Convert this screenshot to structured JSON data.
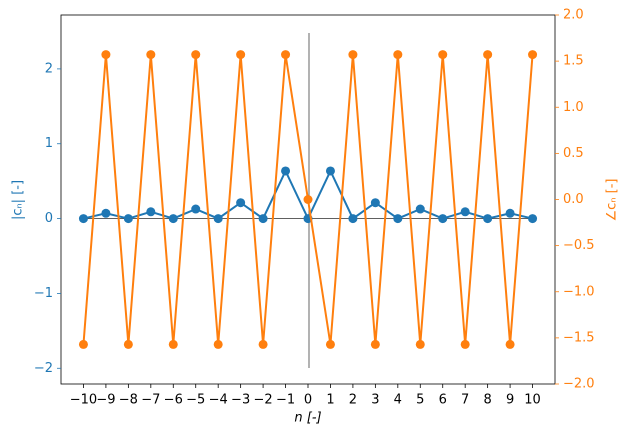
{
  "chart_data": {
    "type": "line",
    "xlabel": "n [-]",
    "ylabel": "|cₙ| [-]",
    "y2label": "∠cₙ [-]",
    "x": [
      -10,
      -9,
      -8,
      -7,
      -6,
      -5,
      -4,
      -3,
      -2,
      -1,
      0,
      1,
      2,
      3,
      4,
      5,
      6,
      7,
      8,
      9,
      10
    ],
    "series": [
      {
        "name": "|cₙ|",
        "color": "#1f77b4",
        "axis": "y",
        "values": [
          0,
          0.0707,
          0,
          0.0909,
          0,
          0.1273,
          0,
          0.2122,
          0,
          0.6366,
          0,
          0.6366,
          0,
          0.2122,
          0,
          0.1273,
          0,
          0.0909,
          0,
          0.0707,
          0
        ]
      },
      {
        "name": "∠cₙ",
        "color": "#ff7f0e",
        "axis": "y2",
        "values": [
          -1.5708,
          1.5708,
          -1.5708,
          1.5708,
          -1.5708,
          1.5708,
          -1.5708,
          1.5708,
          -1.5708,
          1.5708,
          0,
          -1.5708,
          1.5708,
          -1.5708,
          1.5708,
          -1.5708,
          1.5708,
          -1.5708,
          1.5708,
          -1.5708,
          1.5708
        ]
      }
    ],
    "xlim": [
      -11,
      11
    ],
    "xticks": [
      {
        "value": -10,
        "label": "−10"
      },
      {
        "value": -9,
        "label": "−9"
      },
      {
        "value": -8,
        "label": "−8"
      },
      {
        "value": -7,
        "label": "−7"
      },
      {
        "value": -6,
        "label": "−6"
      },
      {
        "value": -5,
        "label": "−5"
      },
      {
        "value": -4,
        "label": "−4"
      },
      {
        "value": -3,
        "label": "−3"
      },
      {
        "value": -2,
        "label": "−2"
      },
      {
        "value": -1,
        "label": "−1"
      },
      0,
      1,
      2,
      3,
      4,
      5,
      6,
      7,
      8,
      9,
      10
    ],
    "ylim": [
      -2.21,
      2.72
    ],
    "yticks": [
      {
        "value": -2,
        "label": "−2"
      },
      {
        "value": -1,
        "label": "−1"
      },
      0,
      1,
      2
    ],
    "y2lim": [
      -2,
      2
    ],
    "y2ticks": [
      {
        "value": -2,
        "label": "−2.0"
      },
      {
        "value": -1.5,
        "label": "−1.5"
      },
      {
        "value": -1,
        "label": "−1.0"
      },
      {
        "value": -0.5,
        "label": "−0.5"
      },
      {
        "value": 0,
        "label": "0.0"
      },
      {
        "value": 0.5,
        "label": "0.5"
      },
      {
        "value": 1,
        "label": "1.0"
      },
      {
        "value": 1.5,
        "label": "1.5"
      },
      {
        "value": 2,
        "label": "2.0"
      }
    ]
  }
}
